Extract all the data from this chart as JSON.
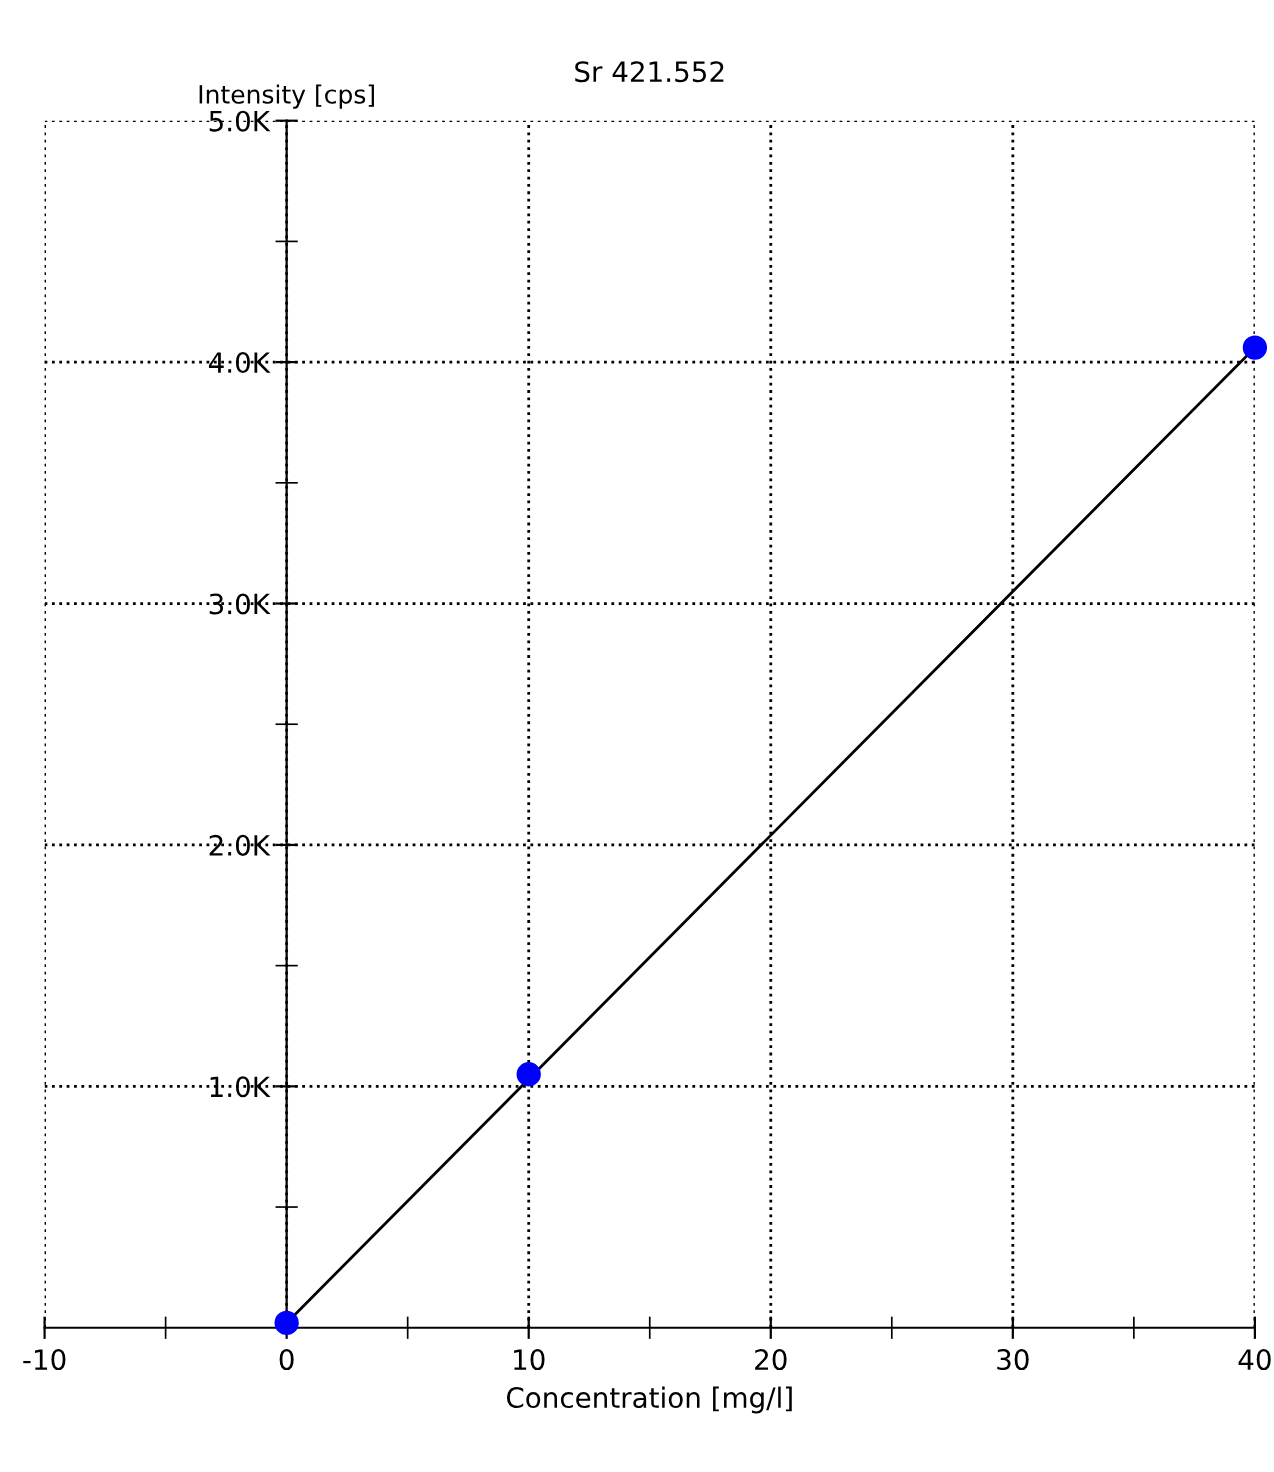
{
  "chart_data": {
    "type": "scatter",
    "title": "Sr 421.552",
    "xlabel": "Concentration [mg/l]",
    "ylabel": "Intensity [cps]",
    "x": [
      0,
      10,
      40
    ],
    "series": [
      {
        "color": "#0000ff",
        "values": [
          20,
          1050,
          4060
        ],
        "marker": "circle"
      },
      {
        "type": "line",
        "color": "#000000",
        "x": [
          0,
          40
        ],
        "values": [
          20,
          4060
        ],
        "line_style": "solid"
      }
    ],
    "xlim": [
      -10,
      40
    ],
    "ylim": [
      0,
      5000
    ],
    "xticks": [
      -10,
      {
        "value": -5,
        "label": null
      },
      0,
      {
        "value": 5,
        "label": null
      },
      10,
      {
        "value": 15,
        "label": null
      },
      20,
      {
        "value": 25,
        "label": null
      },
      30,
      {
        "value": 35,
        "label": null
      },
      40
    ],
    "yticks": [
      {
        "value": 0,
        "label": null
      },
      {
        "value": 500,
        "label": null
      },
      {
        "value": 1000,
        "label": "1.0K"
      },
      {
        "value": 1500,
        "label": null
      },
      {
        "value": 2000,
        "label": "2.0K"
      },
      {
        "value": 2500,
        "label": null
      },
      {
        "value": 3000,
        "label": "3.0K"
      },
      {
        "value": 3500,
        "label": null
      },
      {
        "value": 4000,
        "label": "4.0K"
      },
      {
        "value": 4500,
        "label": null
      },
      {
        "value": 5000,
        "label": "5.0K"
      }
    ],
    "grid": true
  }
}
